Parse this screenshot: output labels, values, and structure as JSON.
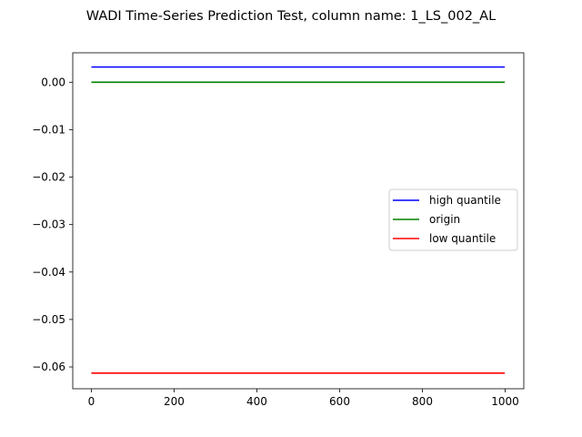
{
  "chart_data": {
    "type": "line",
    "title": "WADI Time-Series Prediction Test, column name: 1_LS_002_AL",
    "xlabel": "",
    "ylabel": "",
    "xlim": [
      -45,
      1045
    ],
    "ylim": [
      -0.0646,
      0.0062
    ],
    "xticks": [
      0,
      200,
      400,
      600,
      800,
      1000
    ],
    "xtick_labels": [
      "0",
      "200",
      "400",
      "600",
      "800",
      "1000"
    ],
    "yticks": [
      0.0,
      -0.01,
      -0.02,
      -0.03,
      -0.04,
      -0.05,
      -0.06
    ],
    "ytick_labels": [
      "0.00",
      "−0.01",
      "−0.02",
      "−0.03",
      "−0.04",
      "−0.05",
      "−0.06"
    ],
    "grid": false,
    "legend_position": "center-right",
    "series": [
      {
        "name": "high quantile",
        "color": "#0000ff",
        "x": [
          0,
          999
        ],
        "values": [
          0.0032,
          0.0032
        ]
      },
      {
        "name": "origin",
        "color": "#008000",
        "x": [
          0,
          999
        ],
        "values": [
          0.0,
          0.0
        ]
      },
      {
        "name": "low quantile",
        "color": "#ff0000",
        "x": [
          0,
          999
        ],
        "values": [
          -0.0613,
          -0.0613
        ]
      }
    ]
  }
}
